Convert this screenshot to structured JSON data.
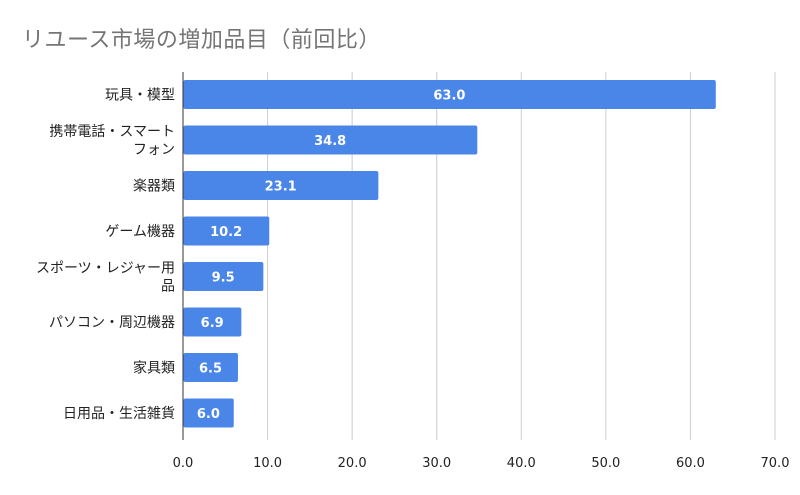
{
  "chart_data": {
    "type": "bar",
    "orientation": "horizontal",
    "title": "リユース市場の増加品目（前回比）",
    "categories": [
      [
        "玩具・模型"
      ],
      [
        "携帯電話・スマート",
        "フォン"
      ],
      [
        "楽器類"
      ],
      [
        "ゲーム機器"
      ],
      [
        "スポーツ・レジャー用",
        "品"
      ],
      [
        "パソコン・周辺機器"
      ],
      [
        "家具類"
      ],
      [
        "日用品・生活雑貨"
      ]
    ],
    "values": [
      63.0,
      34.8,
      23.1,
      10.2,
      9.5,
      6.9,
      6.5,
      6.0
    ],
    "data_labels": [
      "63.0",
      "34.8",
      "23.1",
      "10.2",
      "9.5",
      "6.9",
      "6.5",
      "6.0"
    ],
    "x_ticks": [
      "0.0",
      "10.0",
      "20.0",
      "30.0",
      "40.0",
      "50.0",
      "60.0",
      "70.0"
    ],
    "xlim": [
      0,
      70
    ],
    "xlabel": "",
    "ylabel": "",
    "grid": true,
    "bar_color": "#4a86e8",
    "grid_color": "#cccccc"
  }
}
